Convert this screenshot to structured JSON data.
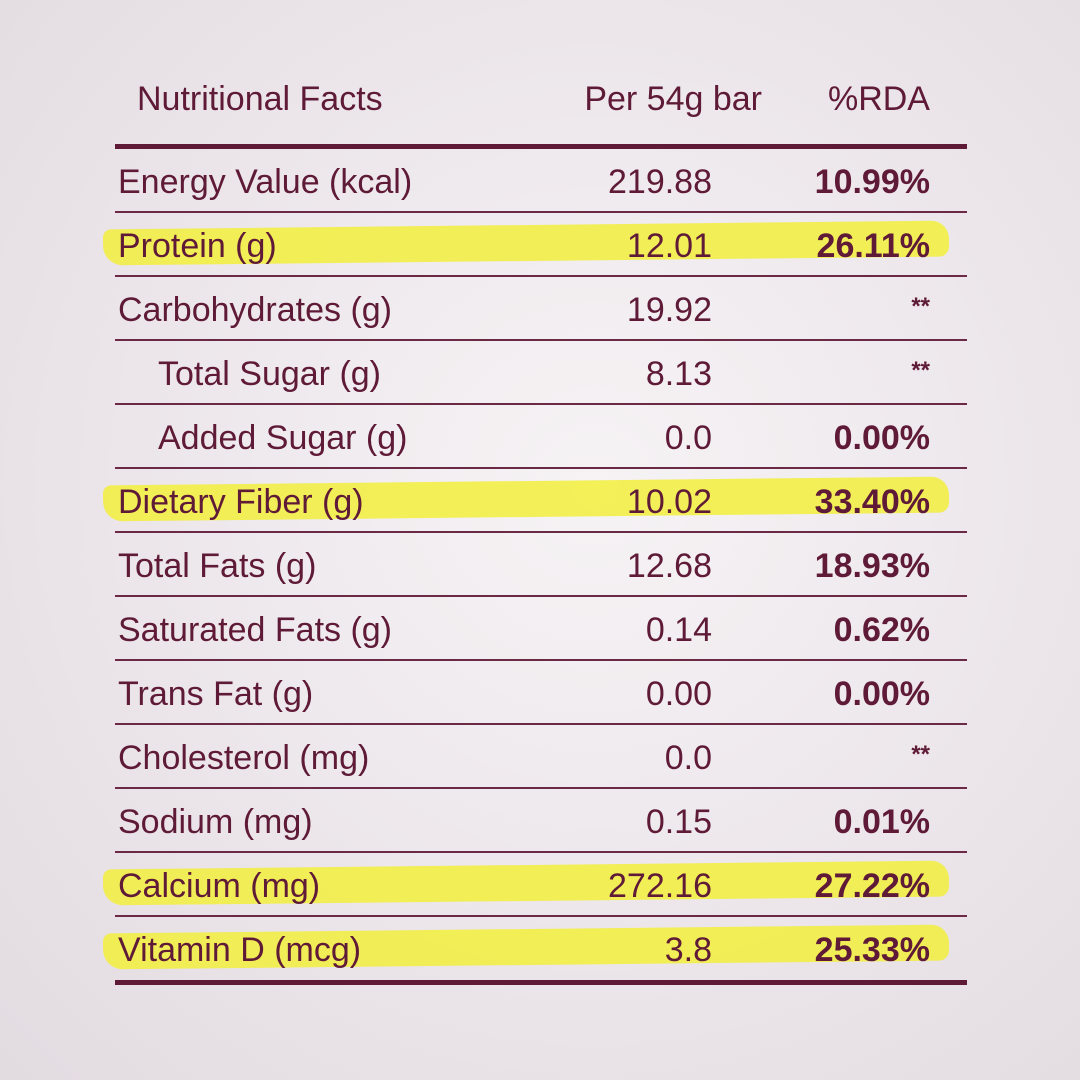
{
  "header": {
    "name": "Nutritional Facts",
    "per": "Per 54g bar",
    "rda": "%RDA"
  },
  "rows": [
    {
      "name": "Energy Value (kcal)",
      "per": "219.88",
      "rda": "10.99%",
      "highlight": false,
      "indent": false
    },
    {
      "name": "Protein (g)",
      "per": "12.01",
      "rda": "26.11%",
      "highlight": true,
      "indent": false
    },
    {
      "name": "Carbohydrates (g)",
      "per": "19.92",
      "rda": "**",
      "highlight": false,
      "indent": false
    },
    {
      "name": "Total Sugar (g)",
      "per": "8.13",
      "rda": "**",
      "highlight": false,
      "indent": true
    },
    {
      "name": "Added Sugar (g)",
      "per": "0.0",
      "rda": "0.00%",
      "highlight": false,
      "indent": true
    },
    {
      "name": "Dietary Fiber (g)",
      "per": "10.02",
      "rda": "33.40%",
      "highlight": true,
      "indent": false
    },
    {
      "name": "Total Fats (g)",
      "per": "12.68",
      "rda": "18.93%",
      "highlight": false,
      "indent": false
    },
    {
      "name": "Saturated Fats (g)",
      "per": "0.14",
      "rda": "0.62%",
      "highlight": false,
      "indent": false
    },
    {
      "name": "Trans Fat (g)",
      "per": "0.00",
      "rda": "0.00%",
      "highlight": false,
      "indent": false
    },
    {
      "name": "Cholesterol (mg)",
      "per": "0.0",
      "rda": "**",
      "highlight": false,
      "indent": false
    },
    {
      "name": "Sodium (mg)",
      "per": "0.15",
      "rda": "0.01%",
      "highlight": false,
      "indent": false
    },
    {
      "name": "Calcium (mg)",
      "per": "272.16",
      "rda": "27.22%",
      "highlight": true,
      "indent": false
    },
    {
      "name": "Vitamin D (mcg)",
      "per": "3.8",
      "rda": "25.33%",
      "highlight": true,
      "indent": false
    }
  ],
  "colors": {
    "text": "#5e1a36",
    "highlight": "#f2ef3c"
  }
}
